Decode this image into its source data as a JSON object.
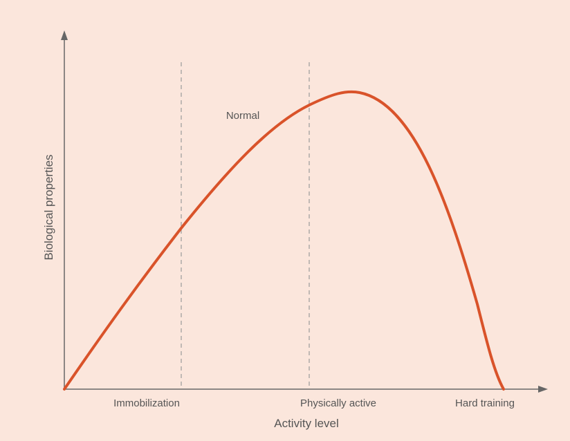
{
  "diagram": {
    "curve_label": "Normal",
    "x_axis_label": "Activity level",
    "y_axis_label": "Biological properties",
    "x_labels": [
      "Immobilization",
      "Physically active",
      "Hard training"
    ]
  }
}
